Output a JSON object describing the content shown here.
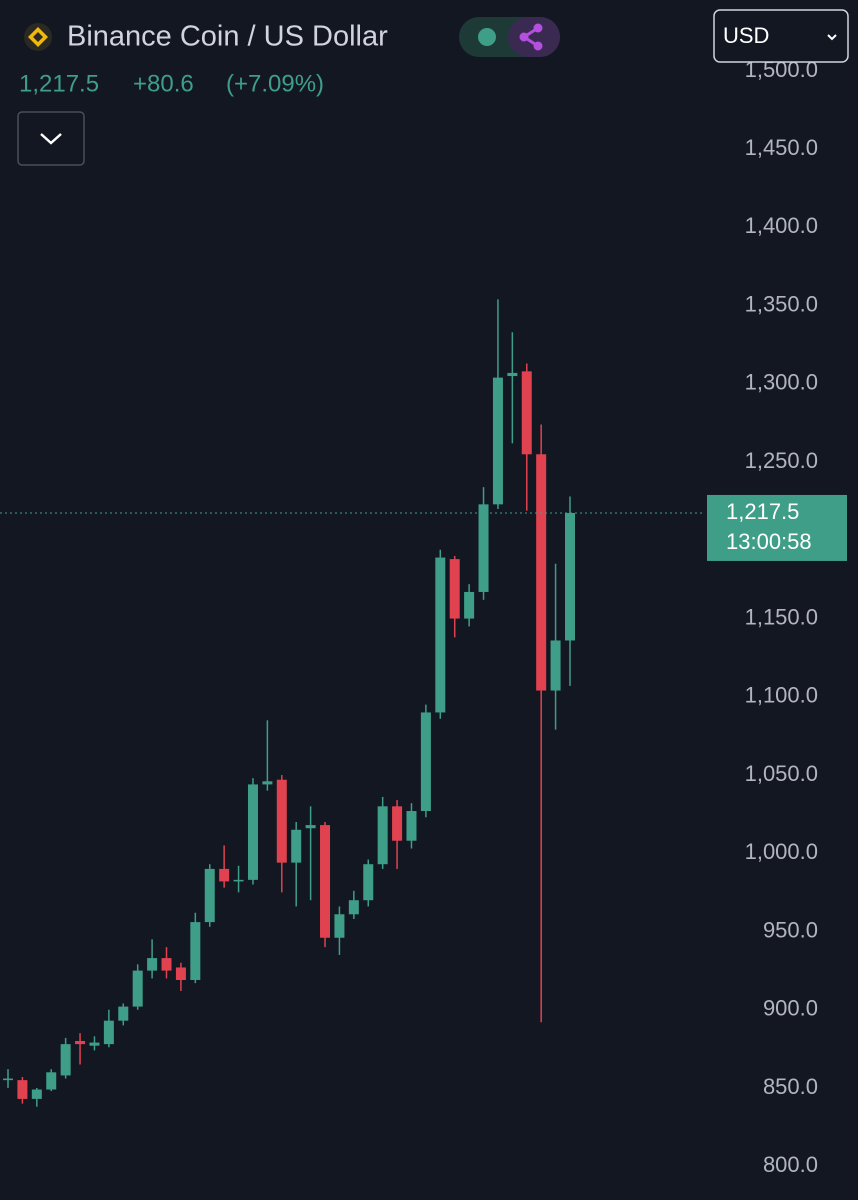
{
  "header": {
    "title": "Binance Coin / US Dollar",
    "price": "1,217.5",
    "change": "+80.6",
    "change_pct": "(+7.09%)",
    "currency": "USD"
  },
  "chart_data": {
    "type": "candlestick",
    "up_color": "#3f9e88",
    "down_color": "#e0434f",
    "ylim": [
      778,
      1507
    ],
    "yticks": [
      {
        "value": 800,
        "label": "800.0"
      },
      {
        "value": 850,
        "label": "850.0"
      },
      {
        "value": 900,
        "label": "900.0"
      },
      {
        "value": 950,
        "label": "950.0"
      },
      {
        "value": 1000,
        "label": "1,000.0"
      },
      {
        "value": 1050,
        "label": "1,050.0"
      },
      {
        "value": 1100,
        "label": "1,100.0"
      },
      {
        "value": 1150,
        "label": "1,150.0"
      },
      {
        "value": 1200,
        "label": "1,200.0"
      },
      {
        "value": 1250,
        "label": "1,250.0"
      },
      {
        "value": 1300,
        "label": "1,300.0"
      },
      {
        "value": 1350,
        "label": "1,350.0"
      },
      {
        "value": 1400,
        "label": "1,400.0"
      },
      {
        "value": 1450,
        "label": "1,450.0"
      },
      {
        "value": 1500,
        "label": "1,500.0"
      }
    ],
    "last_price": {
      "value": 1217.5,
      "label": "1,217.5"
    },
    "countdown": "13:00:58",
    "candles": [
      {
        "open": 855,
        "high": 862,
        "low": 850,
        "close": 856
      },
      {
        "open": 855,
        "high": 857,
        "low": 840,
        "close": 843
      },
      {
        "open": 843,
        "high": 850,
        "low": 838,
        "close": 849
      },
      {
        "open": 849,
        "high": 862,
        "low": 848,
        "close": 860
      },
      {
        "open": 858,
        "high": 882,
        "low": 856,
        "close": 878
      },
      {
        "open": 880,
        "high": 885,
        "low": 865,
        "close": 878
      },
      {
        "open": 877,
        "high": 883,
        "low": 874,
        "close": 879
      },
      {
        "open": 878,
        "high": 900,
        "low": 876,
        "close": 893
      },
      {
        "open": 893,
        "high": 904,
        "low": 890,
        "close": 902
      },
      {
        "open": 902,
        "high": 929,
        "low": 900,
        "close": 925
      },
      {
        "open": 925,
        "high": 945,
        "low": 920,
        "close": 933
      },
      {
        "open": 933,
        "high": 940,
        "low": 920,
        "close": 925
      },
      {
        "open": 927,
        "high": 930,
        "low": 912,
        "close": 919
      },
      {
        "open": 919,
        "high": 962,
        "low": 917,
        "close": 956
      },
      {
        "open": 956,
        "high": 993,
        "low": 953,
        "close": 990
      },
      {
        "open": 990,
        "high": 1005,
        "low": 978,
        "close": 982
      },
      {
        "open": 982,
        "high": 992,
        "low": 975,
        "close": 983
      },
      {
        "open": 983,
        "high": 1048,
        "low": 980,
        "close": 1044
      },
      {
        "open": 1044,
        "high": 1085,
        "low": 1040,
        "close": 1046
      },
      {
        "open": 1047,
        "high": 1050,
        "low": 975,
        "close": 994
      },
      {
        "open": 994,
        "high": 1020,
        "low": 966,
        "close": 1015
      },
      {
        "open": 1016,
        "high": 1030,
        "low": 970,
        "close": 1018
      },
      {
        "open": 1018,
        "high": 1020,
        "low": 940,
        "close": 946
      },
      {
        "open": 946,
        "high": 966,
        "low": 935,
        "close": 961
      },
      {
        "open": 961,
        "high": 976,
        "low": 958,
        "close": 970
      },
      {
        "open": 970,
        "high": 996,
        "low": 966,
        "close": 993
      },
      {
        "open": 993,
        "high": 1036,
        "low": 990,
        "close": 1030
      },
      {
        "open": 1030,
        "high": 1034,
        "low": 990,
        "close": 1008
      },
      {
        "open": 1008,
        "high": 1032,
        "low": 1003,
        "close": 1027
      },
      {
        "open": 1027,
        "high": 1095,
        "low": 1023,
        "close": 1090
      },
      {
        "open": 1090,
        "high": 1194,
        "low": 1086,
        "close": 1189
      },
      {
        "open": 1188,
        "high": 1190,
        "low": 1138,
        "close": 1150
      },
      {
        "open": 1150,
        "high": 1172,
        "low": 1145,
        "close": 1167
      },
      {
        "open": 1167,
        "high": 1234,
        "low": 1162,
        "close": 1223
      },
      {
        "open": 1223,
        "high": 1354,
        "low": 1220,
        "close": 1304
      },
      {
        "open": 1305,
        "high": 1333,
        "low": 1262,
        "close": 1307
      },
      {
        "open": 1308,
        "high": 1313,
        "low": 1219,
        "close": 1255
      },
      {
        "open": 1255,
        "high": 1274,
        "low": 892,
        "close": 1104
      },
      {
        "open": 1104,
        "high": 1185,
        "low": 1079,
        "close": 1136
      },
      {
        "open": 1136,
        "high": 1228,
        "low": 1107,
        "close": 1217.5
      }
    ]
  }
}
